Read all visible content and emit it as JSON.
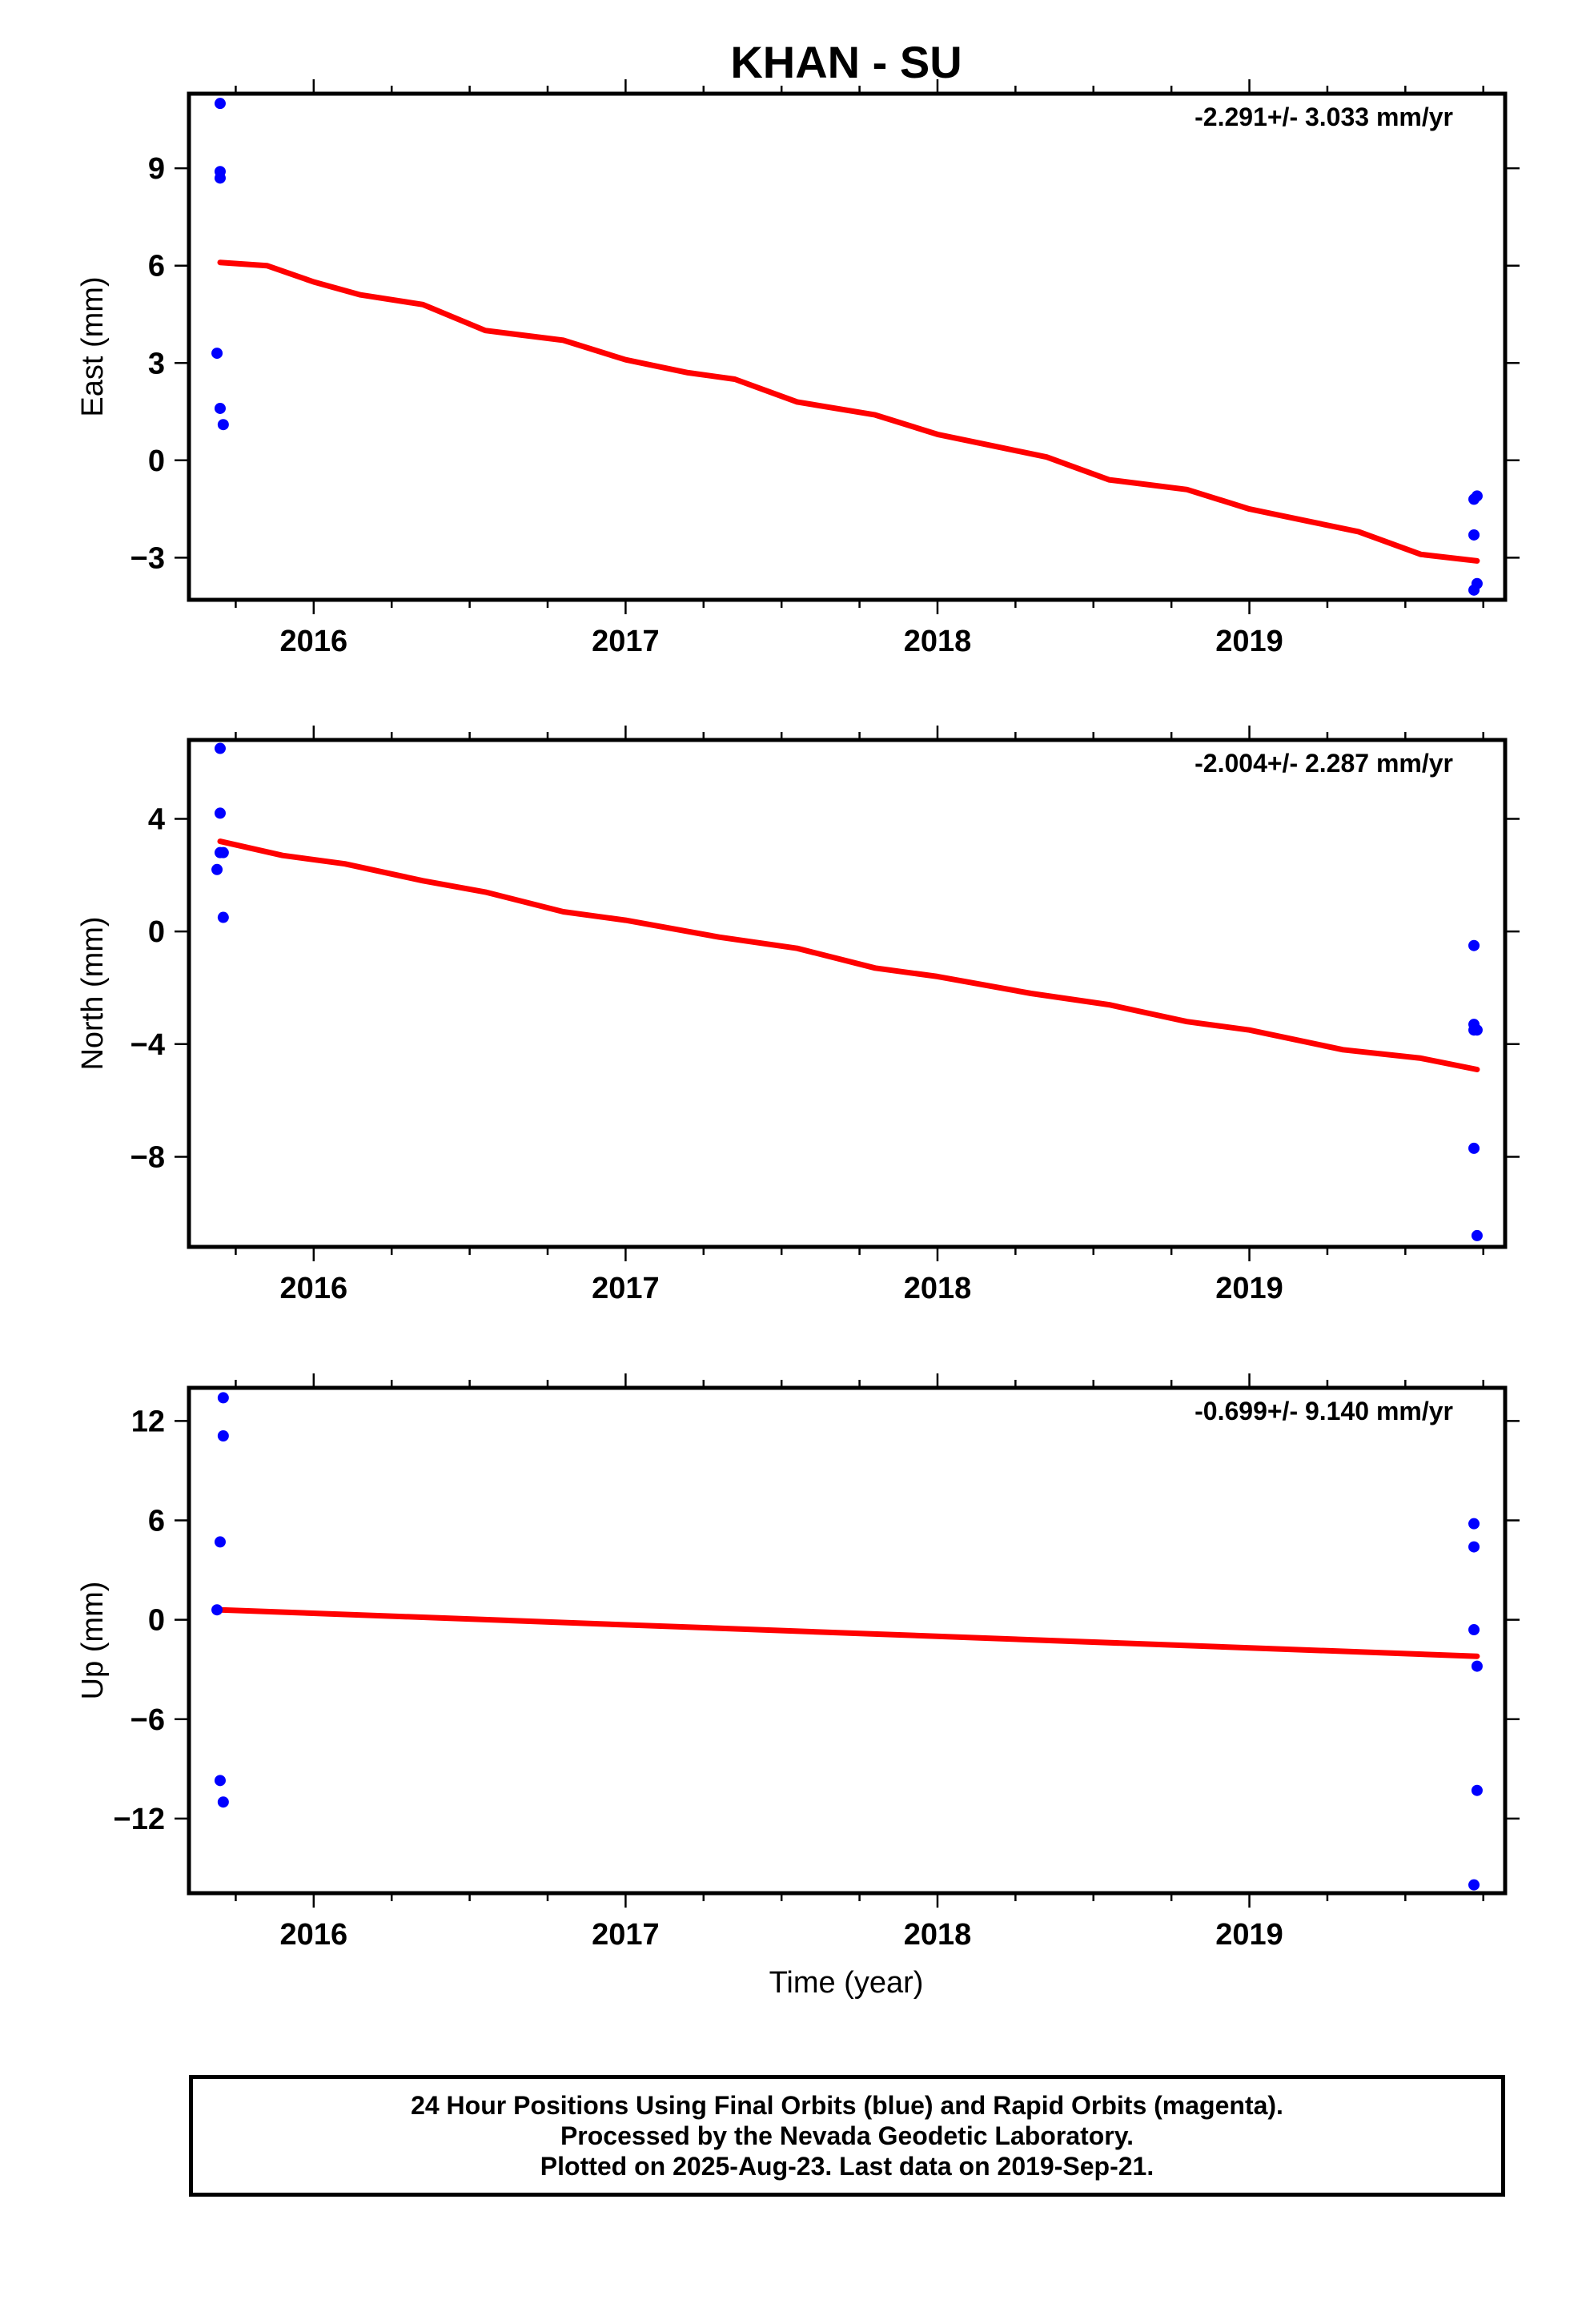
{
  "title": "KHAN - SU",
  "xlabel": "Time (year)",
  "footer": {
    "line1": "24 Hour Positions Using Final Orbits (blue) and Rapid Orbits (magenta).",
    "line2": "Processed by the Nevada Geodetic Laboratory.",
    "line3": "Plotted on 2025-Aug-23. Last data on 2019-Sep-21."
  },
  "colors": {
    "final_orbits": "#0000ff",
    "trend": "#ff0000"
  },
  "chart_data": [
    {
      "type": "scatter",
      "component": "east",
      "ylabel": "East (mm)",
      "rate_text": "-2.291+/- 3.033 mm/yr",
      "xlim": [
        2015.6,
        2019.82
      ],
      "ylim": [
        -4.3,
        11.3
      ],
      "xticks": [
        2016,
        2017,
        2018,
        2019
      ],
      "yticks": [
        -3,
        0,
        3,
        6,
        9
      ],
      "points": [
        {
          "x": 2015.7,
          "y": 11.0
        },
        {
          "x": 2015.7,
          "y": 8.9
        },
        {
          "x": 2015.7,
          "y": 8.7
        },
        {
          "x": 2015.69,
          "y": 3.3
        },
        {
          "x": 2015.7,
          "y": 1.6
        },
        {
          "x": 2015.71,
          "y": 1.1
        },
        {
          "x": 2019.72,
          "y": -1.2
        },
        {
          "x": 2019.73,
          "y": -1.1
        },
        {
          "x": 2019.72,
          "y": -2.3
        },
        {
          "x": 2019.73,
          "y": -3.8
        },
        {
          "x": 2019.72,
          "y": -4.0
        }
      ],
      "trend": [
        {
          "x": 2015.7,
          "y": 6.1
        },
        {
          "x": 2015.85,
          "y": 6.0
        },
        {
          "x": 2016.0,
          "y": 5.5
        },
        {
          "x": 2016.15,
          "y": 5.1
        },
        {
          "x": 2016.35,
          "y": 4.8
        },
        {
          "x": 2016.55,
          "y": 4.0
        },
        {
          "x": 2016.8,
          "y": 3.7
        },
        {
          "x": 2017.0,
          "y": 3.1
        },
        {
          "x": 2017.2,
          "y": 2.7
        },
        {
          "x": 2017.35,
          "y": 2.5
        },
        {
          "x": 2017.55,
          "y": 1.8
        },
        {
          "x": 2017.8,
          "y": 1.4
        },
        {
          "x": 2018.0,
          "y": 0.8
        },
        {
          "x": 2018.2,
          "y": 0.4
        },
        {
          "x": 2018.35,
          "y": 0.1
        },
        {
          "x": 2018.55,
          "y": -0.6
        },
        {
          "x": 2018.8,
          "y": -0.9
        },
        {
          "x": 2019.0,
          "y": -1.5
        },
        {
          "x": 2019.2,
          "y": -1.9
        },
        {
          "x": 2019.35,
          "y": -2.2
        },
        {
          "x": 2019.55,
          "y": -2.9
        },
        {
          "x": 2019.73,
          "y": -3.1
        }
      ]
    },
    {
      "type": "scatter",
      "component": "north",
      "ylabel": "North (mm)",
      "rate_text": "-2.004+/- 2.287 mm/yr",
      "xlim": [
        2015.6,
        2019.82
      ],
      "ylim": [
        -11.2,
        6.8
      ],
      "xticks": [
        2016,
        2017,
        2018,
        2019
      ],
      "yticks": [
        -8,
        -4,
        0,
        4
      ],
      "points": [
        {
          "x": 2015.7,
          "y": 6.5
        },
        {
          "x": 2015.7,
          "y": 4.2
        },
        {
          "x": 2015.7,
          "y": 2.8
        },
        {
          "x": 2015.71,
          "y": 2.8
        },
        {
          "x": 2015.69,
          "y": 2.2
        },
        {
          "x": 2015.71,
          "y": 0.5
        },
        {
          "x": 2019.72,
          "y": -0.5
        },
        {
          "x": 2019.72,
          "y": -3.3
        },
        {
          "x": 2019.72,
          "y": -3.5
        },
        {
          "x": 2019.73,
          "y": -3.5
        },
        {
          "x": 2019.72,
          "y": -7.7
        },
        {
          "x": 2019.73,
          "y": -10.8
        }
      ],
      "trend": [
        {
          "x": 2015.7,
          "y": 3.2
        },
        {
          "x": 2015.9,
          "y": 2.7
        },
        {
          "x": 2016.1,
          "y": 2.4
        },
        {
          "x": 2016.35,
          "y": 1.8
        },
        {
          "x": 2016.55,
          "y": 1.4
        },
        {
          "x": 2016.8,
          "y": 0.7
        },
        {
          "x": 2017.0,
          "y": 0.4
        },
        {
          "x": 2017.3,
          "y": -0.2
        },
        {
          "x": 2017.55,
          "y": -0.6
        },
        {
          "x": 2017.8,
          "y": -1.3
        },
        {
          "x": 2018.0,
          "y": -1.6
        },
        {
          "x": 2018.3,
          "y": -2.2
        },
        {
          "x": 2018.55,
          "y": -2.6
        },
        {
          "x": 2018.8,
          "y": -3.2
        },
        {
          "x": 2019.0,
          "y": -3.5
        },
        {
          "x": 2019.3,
          "y": -4.2
        },
        {
          "x": 2019.55,
          "y": -4.5
        },
        {
          "x": 2019.73,
          "y": -4.9
        }
      ]
    },
    {
      "type": "scatter",
      "component": "up",
      "ylabel": "Up (mm)",
      "rate_text": "-0.699+/- 9.140 mm/yr",
      "xlim": [
        2015.6,
        2019.82
      ],
      "ylim": [
        -16.5,
        14.0
      ],
      "xticks": [
        2016,
        2017,
        2018,
        2019
      ],
      "yticks": [
        -12,
        -6,
        0,
        6,
        12
      ],
      "points": [
        {
          "x": 2015.71,
          "y": 13.4
        },
        {
          "x": 2015.71,
          "y": 11.1
        },
        {
          "x": 2015.7,
          "y": 4.7
        },
        {
          "x": 2015.69,
          "y": 0.6
        },
        {
          "x": 2015.7,
          "y": -9.7
        },
        {
          "x": 2015.71,
          "y": -11.0
        },
        {
          "x": 2019.72,
          "y": 5.8
        },
        {
          "x": 2019.72,
          "y": 4.4
        },
        {
          "x": 2019.72,
          "y": -0.6
        },
        {
          "x": 2019.73,
          "y": -2.8
        },
        {
          "x": 2019.73,
          "y": -10.3
        },
        {
          "x": 2019.72,
          "y": -16.0
        }
      ],
      "trend": [
        {
          "x": 2015.7,
          "y": 0.6
        },
        {
          "x": 2019.73,
          "y": -2.2
        }
      ]
    }
  ]
}
